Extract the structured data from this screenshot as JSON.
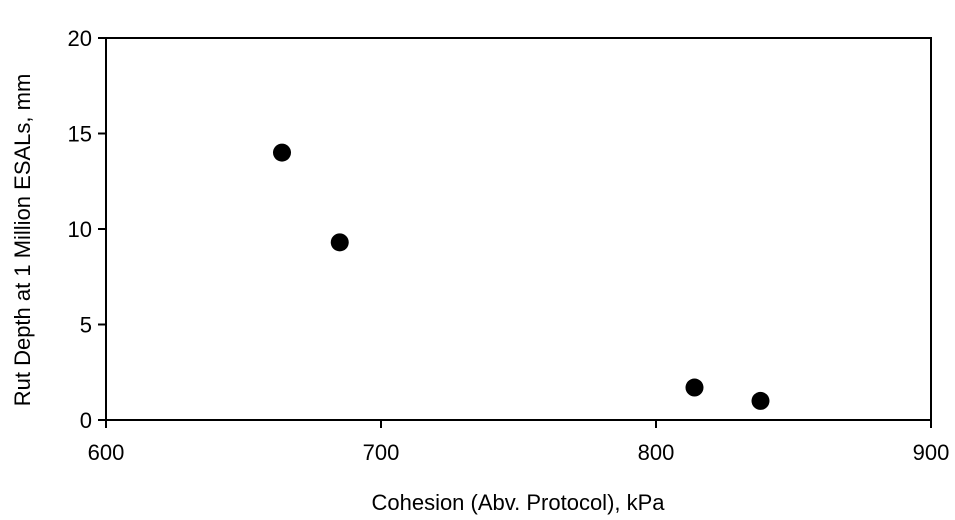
{
  "chart_data": {
    "type": "scatter",
    "title": "",
    "xlabel": "Cohesion (Abv. Protocol), kPa",
    "ylabel": "Rut Depth at 1 Million ESALs, mm",
    "xlim": [
      600,
      900
    ],
    "ylim": [
      0,
      20
    ],
    "xticks": [
      600,
      700,
      800,
      900
    ],
    "yticks": [
      0,
      5,
      10,
      15,
      20
    ],
    "xtick_labels": [
      "600",
      "700",
      "800",
      "900"
    ],
    "ytick_labels": [
      "0",
      "5",
      "10",
      "15",
      "20"
    ],
    "grid": false,
    "legend": "none",
    "marker_color": "#000000",
    "points": [
      {
        "x": 664,
        "y": 14.0
      },
      {
        "x": 685,
        "y": 9.3
      },
      {
        "x": 814,
        "y": 1.7
      },
      {
        "x": 838,
        "y": 1.0
      }
    ]
  }
}
